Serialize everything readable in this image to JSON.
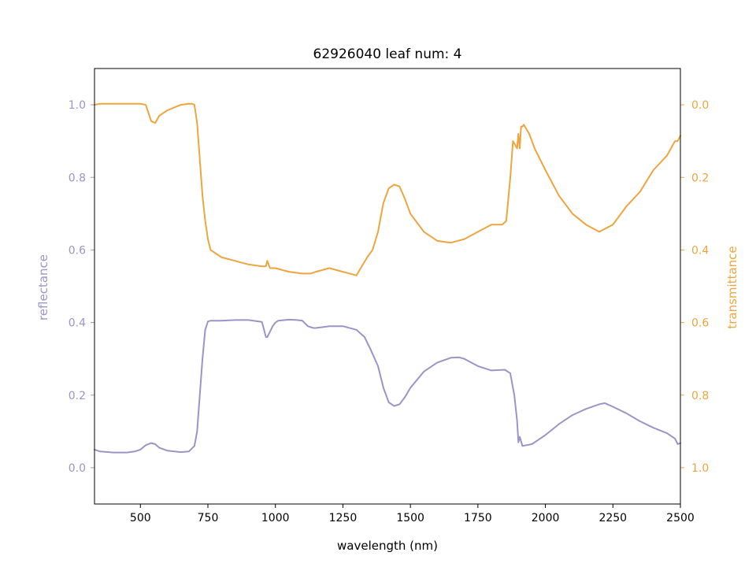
{
  "chart_data": {
    "type": "line",
    "title": "62926040 leaf num: 4",
    "xlabel": "wavelength (nm)",
    "ylabel": "reflectance",
    "y2label": "transmittance",
    "xlim": [
      330,
      2500
    ],
    "ylim": [
      -0.1,
      1.1
    ],
    "y2lim": [
      1.1,
      -0.1
    ],
    "y2_inverted": true,
    "xticks": [
      500,
      750,
      1000,
      1250,
      1500,
      1750,
      2000,
      2250,
      2500
    ],
    "yticks": [
      0.0,
      0.2,
      0.4,
      0.6,
      0.8,
      1.0
    ],
    "y2ticks": [
      0.0,
      0.2,
      0.4,
      0.6,
      0.8,
      1.0
    ],
    "grid": false,
    "colors": {
      "reflectance": "#9b94c8",
      "transmittance": "#eda53f"
    },
    "series": [
      {
        "key": "reflectance",
        "axis": "left",
        "x": [
          330,
          350,
          400,
          450,
          480,
          500,
          520,
          540,
          555,
          570,
          600,
          650,
          680,
          700,
          710,
          720,
          730,
          740,
          750,
          760,
          780,
          800,
          850,
          900,
          950,
          965,
          970,
          980,
          990,
          1000,
          1010,
          1050,
          1080,
          1100,
          1120,
          1140,
          1150,
          1200,
          1250,
          1300,
          1330,
          1350,
          1380,
          1400,
          1420,
          1440,
          1460,
          1480,
          1500,
          1550,
          1600,
          1650,
          1680,
          1700,
          1750,
          1800,
          1850,
          1870,
          1885,
          1895,
          1900,
          1905,
          1915,
          1950,
          2000,
          2050,
          2100,
          2150,
          2200,
          2220,
          2250,
          2300,
          2350,
          2400,
          2450,
          2480,
          2490,
          2500
        ],
        "y": [
          0.05,
          0.045,
          0.042,
          0.042,
          0.045,
          0.05,
          0.062,
          0.068,
          0.065,
          0.055,
          0.047,
          0.043,
          0.045,
          0.06,
          0.1,
          0.2,
          0.3,
          0.38,
          0.403,
          0.405,
          0.405,
          0.405,
          0.407,
          0.407,
          0.402,
          0.36,
          0.36,
          0.375,
          0.39,
          0.4,
          0.405,
          0.408,
          0.407,
          0.405,
          0.39,
          0.385,
          0.385,
          0.39,
          0.39,
          0.38,
          0.36,
          0.33,
          0.28,
          0.22,
          0.18,
          0.17,
          0.175,
          0.195,
          0.22,
          0.265,
          0.29,
          0.303,
          0.304,
          0.3,
          0.28,
          0.268,
          0.27,
          0.26,
          0.2,
          0.13,
          0.07,
          0.085,
          0.06,
          0.065,
          0.09,
          0.12,
          0.145,
          0.162,
          0.175,
          0.178,
          0.168,
          0.15,
          0.128,
          0.11,
          0.095,
          0.08,
          0.065,
          0.068
        ]
      },
      {
        "key": "transmittance",
        "axis": "right",
        "x": [
          330,
          350,
          400,
          450,
          480,
          500,
          520,
          540,
          555,
          570,
          600,
          650,
          680,
          690,
          700,
          710,
          720,
          730,
          740,
          750,
          760,
          780,
          800,
          850,
          900,
          950,
          965,
          970,
          980,
          1000,
          1050,
          1100,
          1130,
          1150,
          1200,
          1250,
          1300,
          1340,
          1360,
          1380,
          1400,
          1420,
          1440,
          1460,
          1480,
          1500,
          1550,
          1600,
          1650,
          1700,
          1750,
          1800,
          1840,
          1855,
          1870,
          1880,
          1895,
          1900,
          1905,
          1910,
          1915,
          1920,
          1940,
          1960,
          2000,
          2050,
          2100,
          2150,
          2200,
          2250,
          2300,
          2350,
          2400,
          2450,
          2480,
          2490,
          2500
        ],
        "y": [
          0.0,
          -0.003,
          -0.003,
          -0.003,
          -0.003,
          -0.003,
          0.0,
          0.045,
          0.05,
          0.03,
          0.015,
          0.0,
          -0.003,
          -0.003,
          0.0,
          0.05,
          0.15,
          0.25,
          0.32,
          0.37,
          0.4,
          0.41,
          0.42,
          0.43,
          0.44,
          0.445,
          0.445,
          0.43,
          0.45,
          0.45,
          0.46,
          0.465,
          0.465,
          0.46,
          0.45,
          0.46,
          0.47,
          0.42,
          0.4,
          0.35,
          0.27,
          0.23,
          0.22,
          0.225,
          0.26,
          0.3,
          0.35,
          0.375,
          0.38,
          0.37,
          0.35,
          0.33,
          0.33,
          0.32,
          0.2,
          0.1,
          0.12,
          0.08,
          0.12,
          0.06,
          0.06,
          0.055,
          0.08,
          0.12,
          0.18,
          0.25,
          0.3,
          0.33,
          0.35,
          0.33,
          0.28,
          0.24,
          0.18,
          0.14,
          0.1,
          0.1,
          0.085
        ]
      }
    ]
  }
}
